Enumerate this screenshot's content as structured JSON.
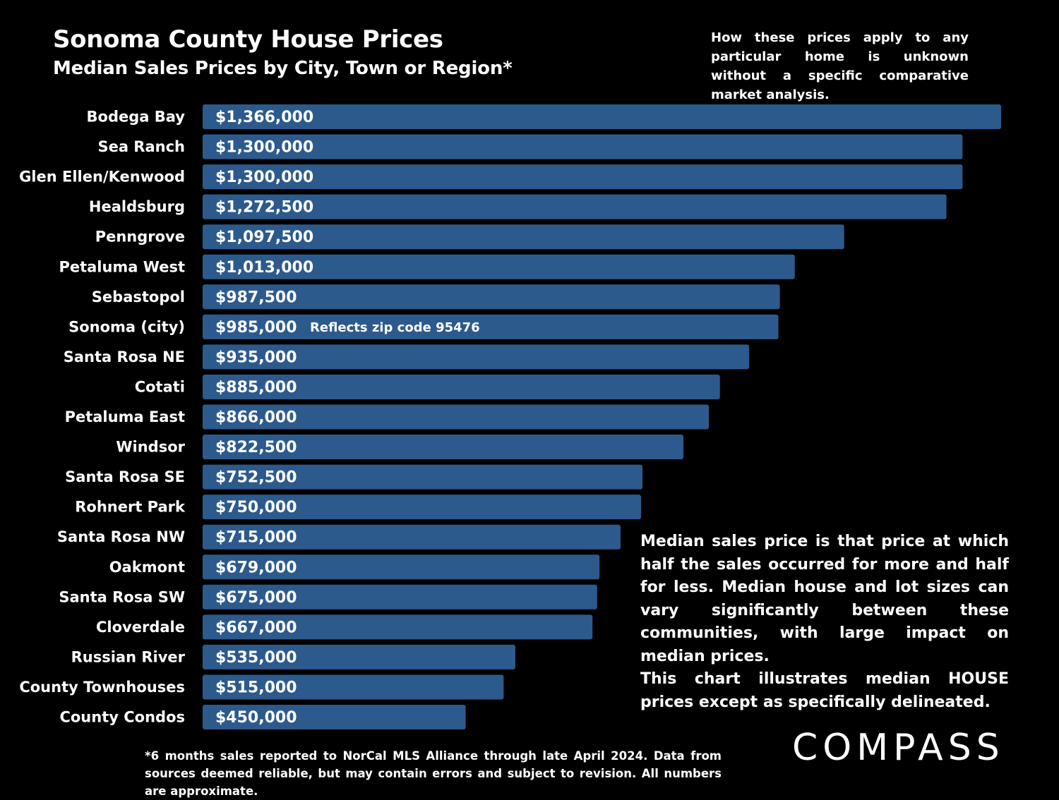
{
  "colors": {
    "background": "#000000",
    "bar": "#2d5a8c",
    "text": "#ffffff"
  },
  "header": {
    "title": "Sonoma County House Prices",
    "subtitle": "Median Sales Prices by City, Town or Region*",
    "disclaimer": "How these prices apply to any particular home is unknown without a specific comparative market analysis."
  },
  "chart_data": {
    "type": "bar",
    "orientation": "horizontal",
    "title": "Sonoma County House Prices",
    "subtitle": "Median Sales Prices by City, Town or Region*",
    "xlabel": "",
    "ylabel": "",
    "xlim": [
      0,
      1366000
    ],
    "grid": false,
    "categories": [
      "Bodega Bay",
      "Sea Ranch",
      "Glen Ellen/Kenwood",
      "Healdsburg",
      "Penngrove",
      "Petaluma West",
      "Sebastopol",
      "Sonoma (city)",
      "Santa Rosa NE",
      "Cotati",
      "Petaluma East",
      "Windsor",
      "Santa Rosa SE",
      "Rohnert Park",
      "Santa Rosa NW",
      "Oakmont",
      "Santa Rosa SW",
      "Cloverdale",
      "Russian River",
      "County Townhouses",
      "County Condos"
    ],
    "values": [
      1366000,
      1300000,
      1300000,
      1272500,
      1097500,
      1013000,
      987500,
      985000,
      935000,
      885000,
      866000,
      822500,
      752500,
      750000,
      715000,
      679000,
      675000,
      667000,
      535000,
      515000,
      450000
    ],
    "labels": [
      "$1,366,000",
      "$1,300,000",
      "$1,300,000",
      "$1,272,500",
      "$1,097,500",
      "$1,013,000",
      "$987,500",
      "$985,000",
      "$935,000",
      "$885,000",
      "$866,000",
      "$822,500",
      "$752,500",
      "$750,000",
      "$715,000",
      "$679,000",
      "$675,000",
      "$667,000",
      "$535,000",
      "$515,000",
      "$450,000"
    ],
    "annotations": [
      {
        "category": "Sonoma (city)",
        "text": "Reflects zip code 95476"
      }
    ]
  },
  "notes": {
    "median_definition": "Median sales price is that price at which half the sales occurred for more and half for less. Median house and lot sizes can vary significantly between these communities, with large impact on median prices.",
    "house_prices": "This chart illustrates median HOUSE prices except as specifically delineated."
  },
  "footnote": "*6 months sales reported to NorCal MLS Alliance through late April 2024. Data from sources deemed reliable, but may contain errors and subject to revision. All numbers are approximate.",
  "logo": {
    "text": "COMPASS"
  }
}
